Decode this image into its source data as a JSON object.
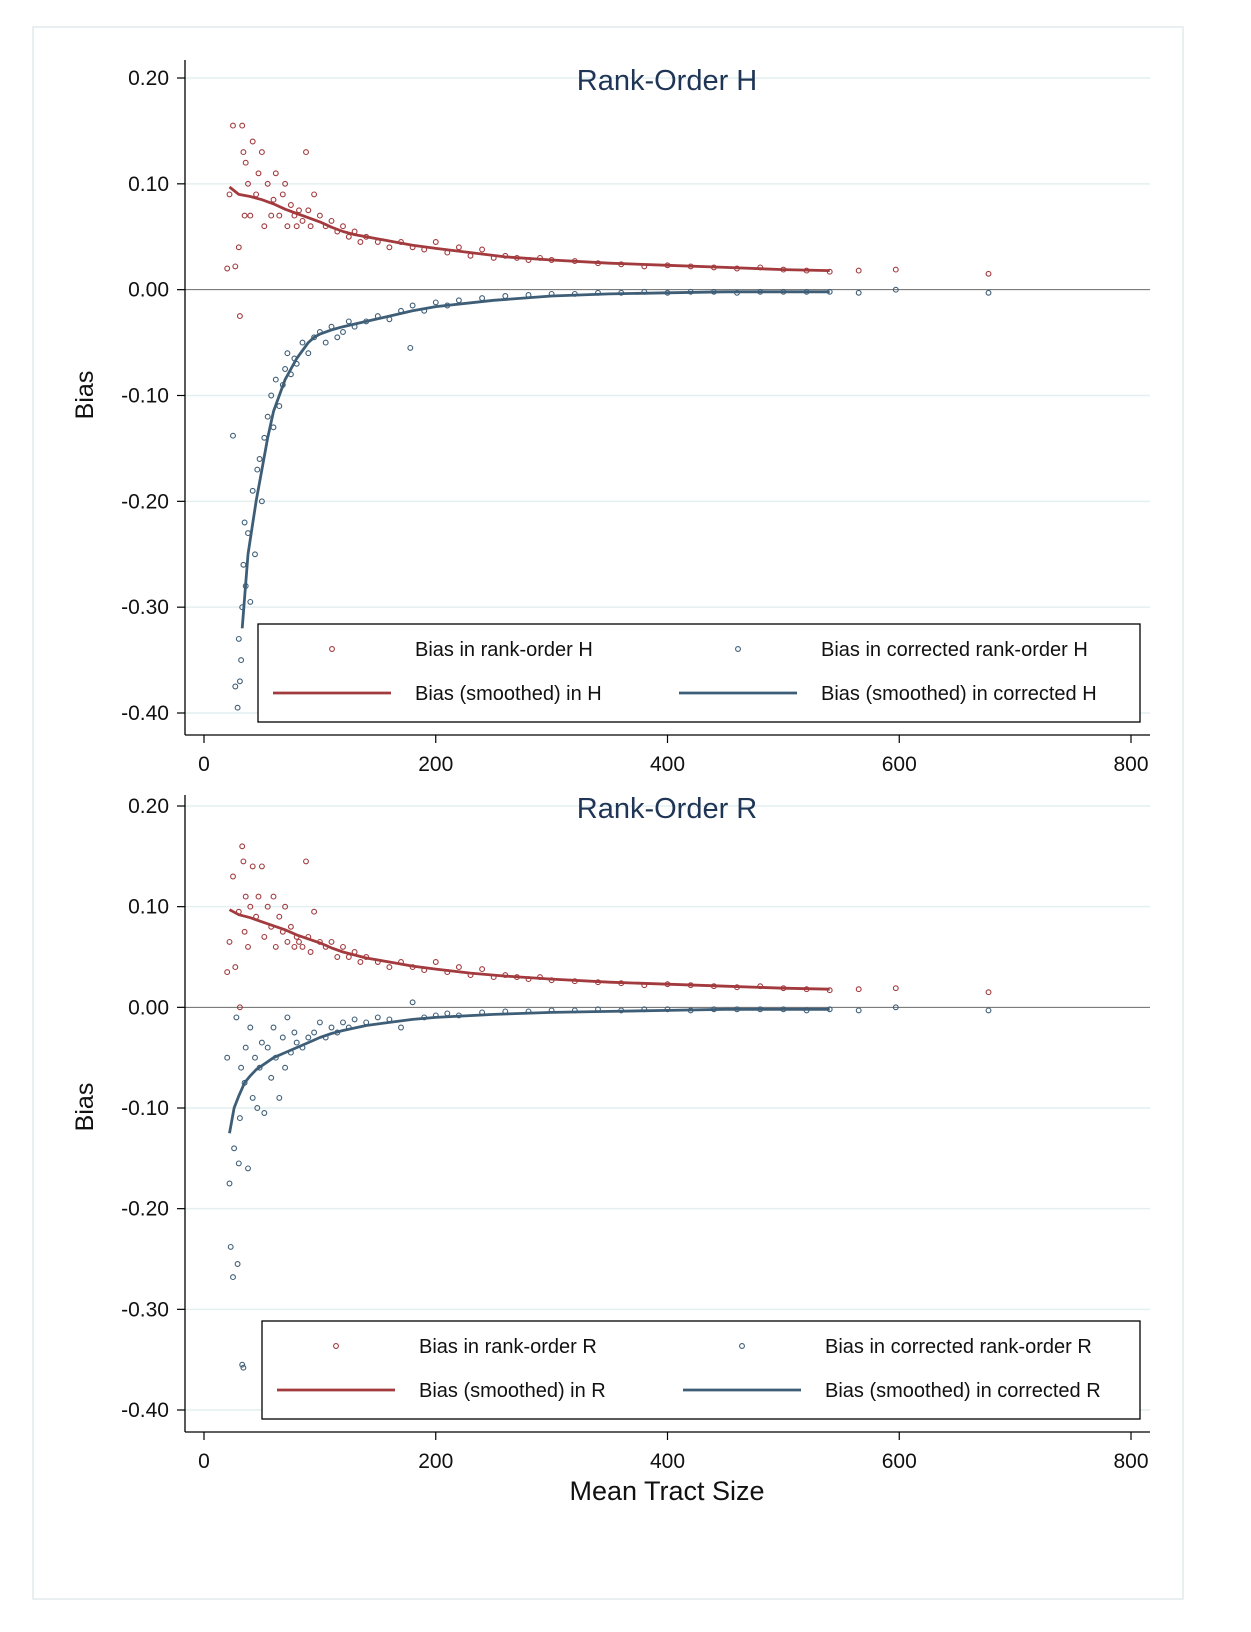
{
  "colors": {
    "red": "#a23a3e",
    "blue": "#3e5e77",
    "title": "#1f3555",
    "grid": "#e4efef",
    "frame": "#e2eaeb"
  },
  "icons": {
    "scatter_marker": "hollow-circle-icon",
    "smooth_marker": "line-icon"
  },
  "chart_data": [
    {
      "type": "scatter",
      "title": "Rank-Order H",
      "ylabel": "Bias",
      "xlabel": "",
      "xlim": [
        -20,
        820
      ],
      "ylim": [
        -0.42,
        0.2
      ],
      "xticks": [
        0,
        200,
        400,
        600,
        800
      ],
      "xtick_labels": [
        "0",
        "200",
        "400",
        "600",
        "800"
      ],
      "yticks": [
        0.2,
        0.1,
        0.0,
        -0.1,
        -0.2,
        -0.3,
        -0.4
      ],
      "ytick_labels": [
        "0.20",
        "0.10",
        "0.00",
        "-0.10",
        "-0.20",
        "-0.30",
        "-0.40"
      ],
      "grid": true,
      "zero_line": true,
      "legend_position": "bottom",
      "legend": [
        {
          "label": "Bias in rank-order H",
          "kind": "marker",
          "color": "red"
        },
        {
          "label": "Bias in corrected rank-order H",
          "kind": "marker",
          "color": "blue"
        },
        {
          "label": "Bias (smoothed) in H",
          "kind": "line",
          "color": "red"
        },
        {
          "label": "Bias (smoothed) in corrected H",
          "kind": "line",
          "color": "blue"
        }
      ],
      "series": [
        {
          "name": "Bias in rank-order H",
          "kind": "scatter",
          "color": "red",
          "x": [
            20,
            22,
            25,
            27,
            30,
            31,
            33,
            34,
            35,
            36,
            38,
            40,
            42,
            45,
            47,
            50,
            52,
            55,
            58,
            60,
            62,
            65,
            68,
            70,
            72,
            75,
            78,
            80,
            82,
            85,
            88,
            90,
            92,
            95,
            100,
            105,
            110,
            115,
            120,
            125,
            130,
            135,
            140,
            150,
            160,
            170,
            180,
            190,
            200,
            210,
            220,
            230,
            240,
            250,
            260,
            270,
            280,
            290,
            300,
            320,
            340,
            360,
            380,
            400,
            420,
            440,
            460,
            480,
            500,
            520,
            540,
            565,
            597,
            677
          ],
          "y": [
            0.02,
            0.09,
            0.155,
            0.022,
            0.04,
            -0.025,
            0.155,
            0.13,
            0.07,
            0.12,
            0.1,
            0.07,
            0.14,
            0.09,
            0.11,
            0.13,
            0.06,
            0.1,
            0.07,
            0.085,
            0.11,
            0.07,
            0.09,
            0.1,
            0.06,
            0.08,
            0.07,
            0.06,
            0.075,
            0.065,
            0.13,
            0.075,
            0.06,
            0.09,
            0.07,
            0.06,
            0.065,
            0.055,
            0.06,
            0.05,
            0.055,
            0.045,
            0.05,
            0.045,
            0.04,
            0.045,
            0.04,
            0.038,
            0.045,
            0.035,
            0.04,
            0.032,
            0.038,
            0.03,
            0.032,
            0.03,
            0.028,
            0.03,
            0.028,
            0.027,
            0.025,
            0.024,
            0.022,
            0.023,
            0.022,
            0.021,
            0.02,
            0.021,
            0.019,
            0.018,
            0.017,
            0.018,
            0.019,
            0.015
          ]
        },
        {
          "name": "Bias in corrected rank-order H",
          "kind": "scatter",
          "color": "blue",
          "x": [
            25,
            27,
            29,
            30,
            31,
            32,
            33,
            34,
            35,
            36,
            38,
            40,
            42,
            44,
            46,
            48,
            50,
            52,
            55,
            58,
            60,
            62,
            65,
            68,
            70,
            72,
            75,
            78,
            80,
            85,
            90,
            95,
            100,
            105,
            110,
            115,
            120,
            125,
            130,
            140,
            150,
            160,
            170,
            178,
            180,
            190,
            200,
            210,
            220,
            240,
            260,
            280,
            300,
            320,
            340,
            360,
            380,
            400,
            420,
            440,
            460,
            480,
            500,
            520,
            540,
            565,
            597,
            677
          ],
          "y": [
            -0.138,
            -0.375,
            -0.395,
            -0.33,
            -0.37,
            -0.35,
            -0.3,
            -0.26,
            -0.22,
            -0.28,
            -0.23,
            -0.295,
            -0.19,
            -0.25,
            -0.17,
            -0.16,
            -0.2,
            -0.14,
            -0.12,
            -0.1,
            -0.13,
            -0.085,
            -0.11,
            -0.09,
            -0.075,
            -0.06,
            -0.08,
            -0.065,
            -0.07,
            -0.05,
            -0.06,
            -0.045,
            -0.04,
            -0.05,
            -0.035,
            -0.045,
            -0.04,
            -0.03,
            -0.035,
            -0.03,
            -0.025,
            -0.028,
            -0.02,
            -0.055,
            -0.015,
            -0.02,
            -0.012,
            -0.015,
            -0.01,
            -0.008,
            -0.006,
            -0.005,
            -0.004,
            -0.004,
            -0.003,
            -0.003,
            -0.002,
            -0.003,
            -0.002,
            -0.002,
            -0.003,
            -0.002,
            -0.002,
            -0.002,
            -0.002,
            -0.003,
            0.0,
            -0.003
          ]
        },
        {
          "name": "Bias (smoothed) in H",
          "kind": "line",
          "color": "red",
          "x": [
            22,
            30,
            40,
            50,
            60,
            70,
            80,
            90,
            100,
            110,
            120,
            130,
            140,
            160,
            180,
            200,
            230,
            260,
            300,
            350,
            400,
            450,
            500,
            540
          ],
          "y": [
            0.097,
            0.09,
            0.088,
            0.085,
            0.081,
            0.076,
            0.072,
            0.068,
            0.064,
            0.059,
            0.055,
            0.052,
            0.05,
            0.046,
            0.042,
            0.039,
            0.035,
            0.031,
            0.028,
            0.025,
            0.023,
            0.021,
            0.019,
            0.018
          ]
        },
        {
          "name": "Bias (smoothed) in corrected H",
          "kind": "line",
          "color": "blue",
          "x": [
            33,
            38,
            45,
            50,
            55,
            60,
            65,
            70,
            80,
            90,
            95,
            100,
            110,
            120,
            140,
            160,
            180,
            200,
            250,
            300,
            350,
            400,
            450,
            500,
            540
          ],
          "y": [
            -0.32,
            -0.25,
            -0.2,
            -0.17,
            -0.14,
            -0.115,
            -0.1,
            -0.085,
            -0.065,
            -0.05,
            -0.045,
            -0.042,
            -0.038,
            -0.035,
            -0.03,
            -0.025,
            -0.02,
            -0.016,
            -0.01,
            -0.006,
            -0.004,
            -0.003,
            -0.002,
            -0.002,
            -0.002
          ]
        }
      ]
    },
    {
      "type": "scatter",
      "title": "Rank-Order R",
      "ylabel": "Bias",
      "xlabel": "Mean Tract Size",
      "xlim": [
        -20,
        820
      ],
      "ylim": [
        -0.42,
        0.2
      ],
      "xticks": [
        0,
        200,
        400,
        600,
        800
      ],
      "xtick_labels": [
        "0",
        "200",
        "400",
        "600",
        "800"
      ],
      "yticks": [
        0.2,
        0.1,
        0.0,
        -0.1,
        -0.2,
        -0.3,
        -0.4
      ],
      "ytick_labels": [
        "0.20",
        "0.10",
        "0.00",
        "-0.10",
        "-0.20",
        "-0.30",
        "-0.40"
      ],
      "grid": true,
      "zero_line": true,
      "legend_position": "bottom",
      "legend": [
        {
          "label": "Bias in rank-order R",
          "kind": "marker",
          "color": "red"
        },
        {
          "label": "Bias in corrected rank-order R",
          "kind": "marker",
          "color": "blue"
        },
        {
          "label": "Bias (smoothed) in R",
          "kind": "line",
          "color": "red"
        },
        {
          "label": "Bias (smoothed) in corrected R",
          "kind": "line",
          "color": "blue"
        }
      ],
      "series": [
        {
          "name": "Bias in rank-order R",
          "kind": "scatter",
          "color": "red",
          "x": [
            20,
            22,
            25,
            27,
            30,
            31,
            33,
            34,
            35,
            36,
            38,
            40,
            42,
            45,
            47,
            50,
            52,
            55,
            58,
            60,
            62,
            65,
            68,
            70,
            72,
            75,
            78,
            80,
            82,
            85,
            88,
            90,
            92,
            95,
            100,
            105,
            110,
            115,
            120,
            125,
            130,
            135,
            140,
            150,
            160,
            170,
            180,
            190,
            200,
            210,
            220,
            230,
            240,
            250,
            260,
            270,
            280,
            290,
            300,
            320,
            340,
            360,
            380,
            400,
            420,
            440,
            460,
            480,
            500,
            520,
            540,
            565,
            597,
            677
          ],
          "y": [
            0.035,
            0.065,
            0.13,
            0.04,
            0.095,
            0.0,
            0.16,
            0.145,
            0.075,
            0.11,
            0.06,
            0.1,
            0.14,
            0.09,
            0.11,
            0.14,
            0.07,
            0.1,
            0.08,
            0.11,
            0.06,
            0.09,
            0.075,
            0.1,
            0.065,
            0.08,
            0.06,
            0.07,
            0.065,
            0.06,
            0.145,
            0.07,
            0.055,
            0.095,
            0.065,
            0.06,
            0.065,
            0.05,
            0.06,
            0.05,
            0.055,
            0.045,
            0.05,
            0.045,
            0.04,
            0.045,
            0.04,
            0.037,
            0.045,
            0.035,
            0.04,
            0.032,
            0.038,
            0.03,
            0.032,
            0.03,
            0.028,
            0.03,
            0.027,
            0.026,
            0.025,
            0.024,
            0.022,
            0.023,
            0.022,
            0.021,
            0.02,
            0.021,
            0.019,
            0.018,
            0.017,
            0.018,
            0.019,
            0.015
          ]
        },
        {
          "name": "Bias in corrected rank-order R",
          "kind": "scatter",
          "color": "blue",
          "x": [
            20,
            22,
            23,
            25,
            26,
            28,
            29,
            30,
            31,
            32,
            33,
            34,
            35,
            36,
            38,
            40,
            42,
            44,
            46,
            48,
            50,
            52,
            55,
            58,
            60,
            62,
            65,
            68,
            70,
            72,
            75,
            78,
            80,
            85,
            90,
            95,
            100,
            105,
            110,
            115,
            120,
            125,
            130,
            140,
            150,
            160,
            170,
            180,
            190,
            200,
            210,
            220,
            240,
            260,
            280,
            300,
            320,
            340,
            360,
            380,
            400,
            420,
            440,
            460,
            480,
            500,
            520,
            540,
            565,
            597,
            677
          ],
          "y": [
            -0.05,
            -0.175,
            -0.238,
            -0.268,
            -0.14,
            -0.01,
            -0.255,
            -0.155,
            -0.11,
            -0.06,
            -0.355,
            -0.358,
            -0.075,
            -0.04,
            -0.16,
            -0.02,
            -0.09,
            -0.05,
            -0.1,
            -0.06,
            -0.035,
            -0.105,
            -0.04,
            -0.07,
            -0.02,
            -0.05,
            -0.09,
            -0.03,
            -0.06,
            -0.01,
            -0.045,
            -0.025,
            -0.035,
            -0.04,
            -0.03,
            -0.025,
            -0.015,
            -0.03,
            -0.02,
            -0.025,
            -0.015,
            -0.02,
            -0.012,
            -0.015,
            -0.01,
            -0.012,
            -0.02,
            0.005,
            -0.01,
            -0.008,
            -0.006,
            -0.008,
            -0.005,
            -0.004,
            -0.004,
            -0.003,
            -0.003,
            -0.002,
            -0.003,
            -0.002,
            -0.002,
            -0.003,
            -0.002,
            -0.002,
            -0.002,
            -0.002,
            -0.003,
            -0.002,
            -0.003,
            0.0,
            -0.003
          ]
        },
        {
          "name": "Bias (smoothed) in R",
          "kind": "line",
          "color": "red",
          "x": [
            22,
            30,
            40,
            50,
            60,
            70,
            80,
            90,
            100,
            110,
            120,
            130,
            140,
            160,
            180,
            200,
            230,
            260,
            300,
            350,
            400,
            450,
            500,
            540
          ],
          "y": [
            0.097,
            0.092,
            0.089,
            0.085,
            0.081,
            0.077,
            0.072,
            0.068,
            0.064,
            0.059,
            0.055,
            0.052,
            0.049,
            0.045,
            0.041,
            0.038,
            0.034,
            0.031,
            0.028,
            0.025,
            0.023,
            0.021,
            0.019,
            0.018
          ]
        },
        {
          "name": "Bias (smoothed) in corrected R",
          "kind": "line",
          "color": "blue",
          "x": [
            22,
            26,
            30,
            35,
            40,
            45,
            50,
            60,
            70,
            80,
            90,
            100,
            110,
            120,
            140,
            160,
            180,
            200,
            250,
            300,
            350,
            400,
            450,
            500,
            540
          ],
          "y": [
            -0.125,
            -0.1,
            -0.088,
            -0.075,
            -0.068,
            -0.062,
            -0.058,
            -0.05,
            -0.045,
            -0.04,
            -0.035,
            -0.03,
            -0.026,
            -0.023,
            -0.018,
            -0.015,
            -0.012,
            -0.01,
            -0.007,
            -0.005,
            -0.004,
            -0.003,
            -0.002,
            -0.002,
            -0.002
          ]
        }
      ]
    }
  ]
}
